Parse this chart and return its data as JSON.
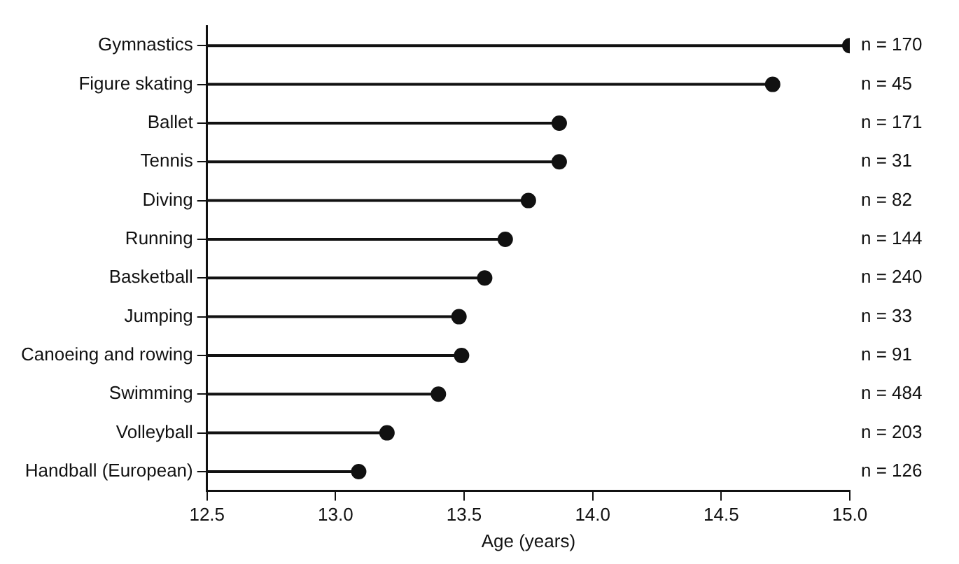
{
  "chart_data": {
    "type": "lollipop",
    "orientation": "horizontal",
    "xlabel": "Age (years)",
    "categories": [
      "Gymnastics",
      "Figure skating",
      "Ballet",
      "Tennis",
      "Diving",
      "Running",
      "Basketball",
      "Jumping",
      "Canoeing and rowing",
      "Swimming",
      "Volleyball",
      "Handball (European)"
    ],
    "values": [
      15.0,
      14.7,
      13.87,
      13.87,
      13.75,
      13.66,
      13.58,
      13.48,
      13.49,
      13.4,
      13.2,
      13.09
    ],
    "annotations": [
      "n = 170",
      "n = 45",
      "n = 171",
      "n = 31",
      "n = 82",
      "n = 144",
      "n = 240",
      "n = 33",
      "n = 91",
      "n = 484",
      "n = 203",
      "n = 126"
    ],
    "color": "#111111",
    "marker": "circle",
    "xlim": [
      12.5,
      15.0
    ],
    "xticks": [
      {
        "value": 12.5,
        "label": "12.5"
      },
      {
        "value": 13.0,
        "label": "13.0"
      },
      {
        "value": 13.5,
        "label": "13.5"
      },
      {
        "value": 14.0,
        "label": "14.0"
      },
      {
        "value": 14.5,
        "label": "14.5"
      },
      {
        "value": 15.0,
        "label": "15.0"
      }
    ],
    "grid": false
  }
}
